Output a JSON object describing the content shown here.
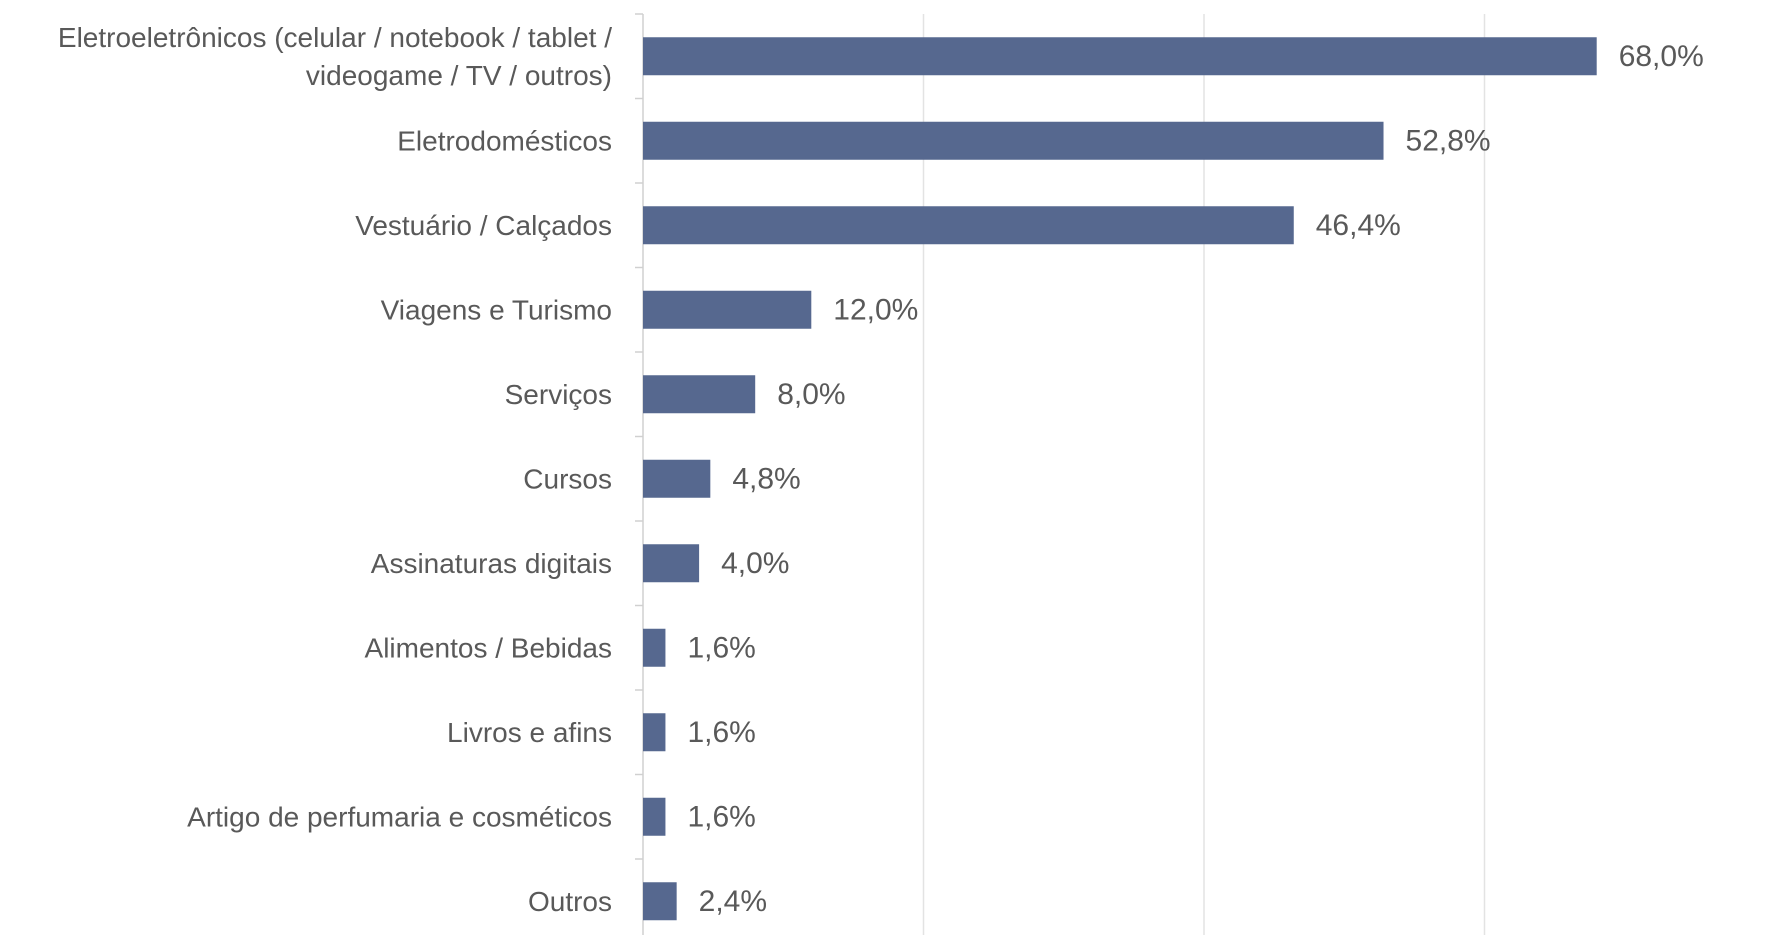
{
  "chart_data": {
    "type": "bar",
    "orientation": "horizontal",
    "title": "",
    "xlabel": "",
    "ylabel": "",
    "categories": [
      [
        "Eletroeletrônicos (celular / notebook / tablet /",
        "videogame / TV / outros)"
      ],
      [
        "Eletrodomésticos"
      ],
      [
        "Vestuário / Calçados"
      ],
      [
        "Viagens e Turismo"
      ],
      [
        "Serviços"
      ],
      [
        "Cursos"
      ],
      [
        "Assinaturas digitais"
      ],
      [
        "Alimentos / Bebidas"
      ],
      [
        "Livros e afins"
      ],
      [
        "Artigo de perfumaria e cosméticos"
      ],
      [
        "Outros"
      ]
    ],
    "values": [
      68.0,
      52.8,
      46.4,
      12.0,
      8.0,
      4.8,
      4.0,
      1.6,
      1.6,
      1.6,
      2.4
    ],
    "data_labels": [
      "68,0%",
      "52,8%",
      "46,4%",
      "12,0%",
      "8,0%",
      "4,8%",
      "4,0%",
      "1,6%",
      "1,6%",
      "1,6%",
      "2,4%"
    ],
    "xlim": [
      0,
      80
    ],
    "grid_vertical_at": [
      20,
      40,
      60
    ],
    "axis_tick_labels_shown": false,
    "legend": "none",
    "colors": {
      "bar": "#56688f",
      "text": "#595959",
      "gridline": "#e3e3e3",
      "axis": "#d0d0d0"
    }
  }
}
